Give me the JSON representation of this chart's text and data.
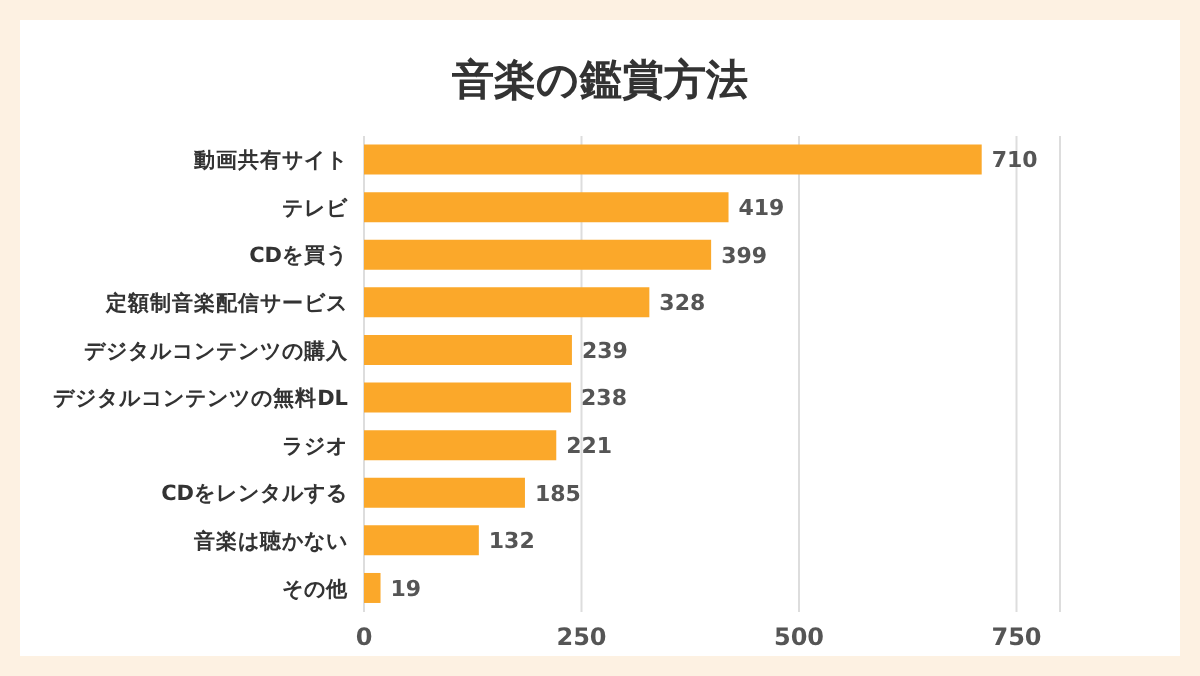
{
  "chart_data": {
    "type": "bar",
    "orientation": "horizontal",
    "title": "音楽の鑑賞方法",
    "categories": [
      "動画共有サイト",
      "テレビ",
      "CDを買う",
      "定額制音楽配信サービス",
      "デジタルコンテンツの購入",
      "デジタルコンテンツの無料DL",
      "ラジオ",
      "CDをレンタルする",
      "音楽は聴かない",
      "その他"
    ],
    "values": [
      710,
      419,
      399,
      328,
      239,
      238,
      221,
      185,
      132,
      19
    ],
    "color": "#fba82a",
    "xlim": [
      0,
      800
    ],
    "xticks": [
      0,
      250,
      500,
      750
    ],
    "grid": "x",
    "data_labels": true
  }
}
